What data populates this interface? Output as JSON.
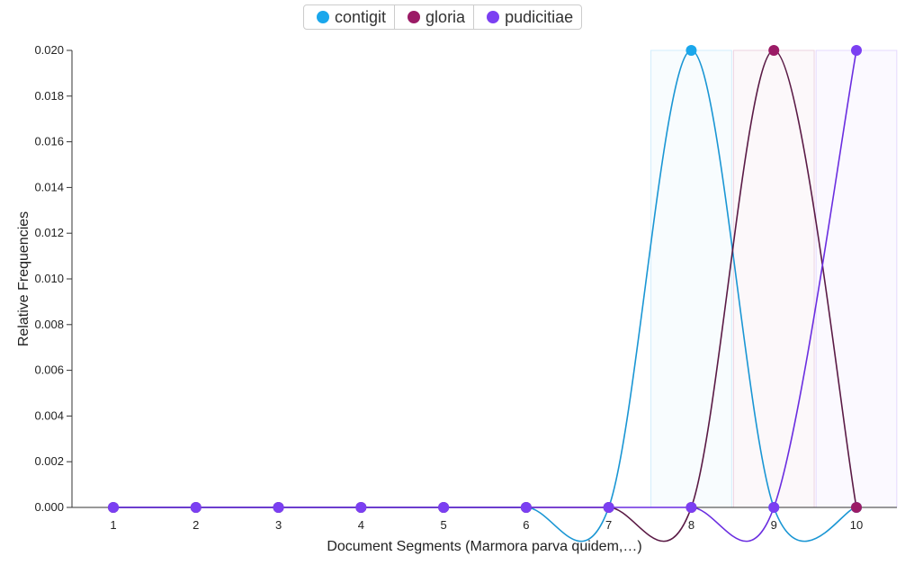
{
  "chart_data": {
    "type": "line",
    "title": "",
    "xlabel": "Document Segments (Marmora parva quidem,…)",
    "ylabel": "Relative Frequencies",
    "x": [
      1,
      2,
      3,
      4,
      5,
      6,
      7,
      8,
      9,
      10
    ],
    "x_tick_labels": [
      "1",
      "2",
      "3",
      "4",
      "5",
      "6",
      "7",
      "8",
      "9",
      "10"
    ],
    "ylim": [
      0,
      0.02
    ],
    "y_ticks": [
      "0.000",
      "0.002",
      "0.004",
      "0.006",
      "0.008",
      "0.010",
      "0.012",
      "0.014",
      "0.016",
      "0.018",
      "0.020"
    ],
    "grid": false,
    "legend_position": "top-center",
    "highlighted_segments": [
      8,
      9,
      10
    ],
    "series": [
      {
        "name": "contigit",
        "color": "#1aa7ec",
        "line_color": "#1a96d4",
        "values": [
          0,
          0,
          0,
          0,
          0,
          0,
          0,
          0.02,
          0,
          0
        ]
      },
      {
        "name": "gloria",
        "color": "#9b1b66",
        "line_color": "#5a1a45",
        "values": [
          0,
          0,
          0,
          0,
          0,
          0,
          0,
          0,
          0.02,
          0
        ]
      },
      {
        "name": "pudicitiae",
        "color": "#7b3ff2",
        "line_color": "#6a2de0",
        "values": [
          0,
          0,
          0,
          0,
          0,
          0,
          0,
          0,
          0,
          0.02
        ]
      }
    ]
  }
}
